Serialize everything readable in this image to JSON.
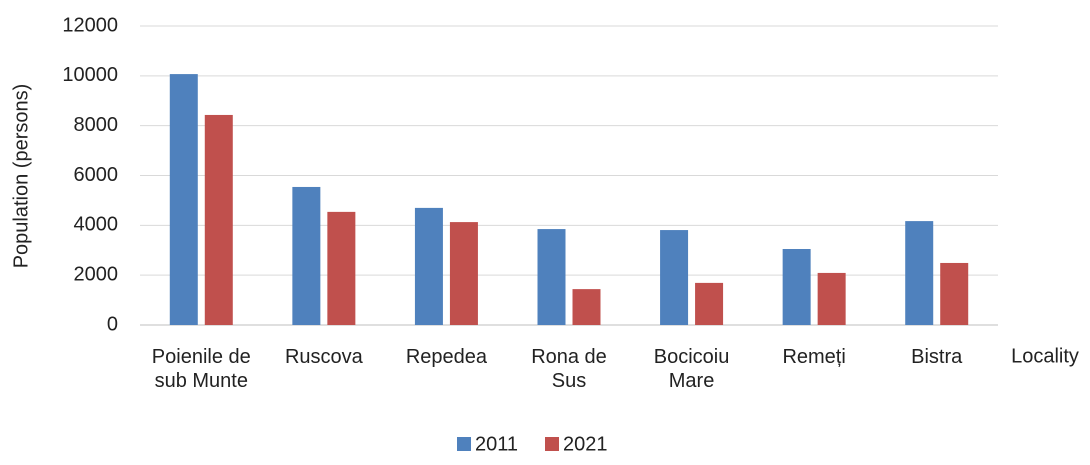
{
  "chart_data": {
    "type": "bar",
    "categories": [
      "Poienile de sub Munte",
      "Ruscova",
      "Repedea",
      "Rona de Sus",
      "Bocicoiu Mare",
      "Remeți",
      "Bistra"
    ],
    "series": [
      {
        "name": "2011",
        "color": "#4f81bd",
        "values": [
          10070,
          5540,
          4700,
          3850,
          3810,
          3050,
          4170
        ]
      },
      {
        "name": "2021",
        "color": "#c0504d",
        "values": [
          8430,
          4540,
          4130,
          1440,
          1690,
          2090,
          2490
        ]
      }
    ],
    "ylabel": "Population (persons)",
    "xlabel": "Locality",
    "ylim": [
      0,
      12000
    ],
    "yticks": [
      0,
      2000,
      4000,
      6000,
      8000,
      10000,
      12000
    ],
    "grid": true,
    "legend": "bottom"
  }
}
